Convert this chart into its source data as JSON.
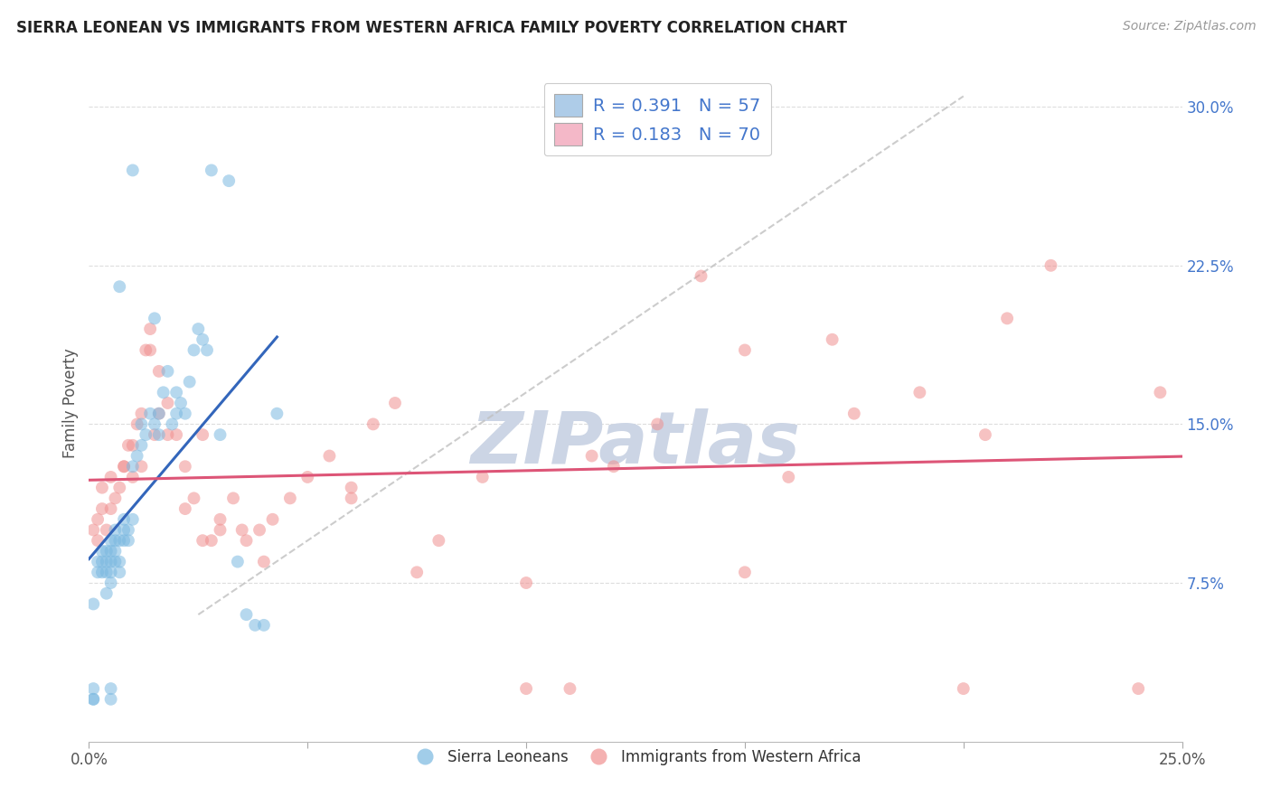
{
  "title": "SIERRA LEONEAN VS IMMIGRANTS FROM WESTERN AFRICA FAMILY POVERTY CORRELATION CHART",
  "source": "Source: ZipAtlas.com",
  "ylabel": "Family Poverty",
  "xlim": [
    0.0,
    0.25
  ],
  "ylim": [
    0.0,
    0.32
  ],
  "background_color": "#ffffff",
  "grid_color": "#dddddd",
  "dashed_line_color": "#c0c0c0",
  "blue_scatter_color": "#7ab8e0",
  "pink_scatter_color": "#f09090",
  "blue_line_color": "#3366bb",
  "pink_line_color": "#dd5577",
  "title_fontsize": 12,
  "legend_blue_label": "R = 0.391   N = 57",
  "legend_pink_label": "R = 0.183   N = 70",
  "legend_blue_patch": "#aecce8",
  "legend_pink_patch": "#f4b8c8",
  "watermark": "ZIPatlas",
  "watermark_color": "#ccd5e5",
  "axis_label_color": "#4477cc",
  "tick_color": "#555555",
  "sierra_x": [
    0.001,
    0.002,
    0.002,
    0.003,
    0.003,
    0.003,
    0.004,
    0.004,
    0.004,
    0.004,
    0.005,
    0.005,
    0.005,
    0.005,
    0.005,
    0.006,
    0.006,
    0.006,
    0.006,
    0.007,
    0.007,
    0.007,
    0.008,
    0.008,
    0.008,
    0.009,
    0.009,
    0.01,
    0.01,
    0.011,
    0.012,
    0.012,
    0.013,
    0.014,
    0.015,
    0.016,
    0.016,
    0.017,
    0.018,
    0.019,
    0.02,
    0.02,
    0.021,
    0.022,
    0.023,
    0.024,
    0.025,
    0.026,
    0.027,
    0.028,
    0.03,
    0.032,
    0.034,
    0.036,
    0.038,
    0.04,
    0.043
  ],
  "sierra_y": [
    0.065,
    0.08,
    0.085,
    0.08,
    0.085,
    0.09,
    0.07,
    0.08,
    0.085,
    0.09,
    0.075,
    0.08,
    0.085,
    0.09,
    0.095,
    0.085,
    0.09,
    0.095,
    0.1,
    0.08,
    0.085,
    0.095,
    0.095,
    0.1,
    0.105,
    0.095,
    0.1,
    0.105,
    0.13,
    0.135,
    0.14,
    0.15,
    0.145,
    0.155,
    0.15,
    0.145,
    0.155,
    0.165,
    0.175,
    0.15,
    0.155,
    0.165,
    0.16,
    0.155,
    0.17,
    0.185,
    0.195,
    0.19,
    0.185,
    0.27,
    0.145,
    0.265,
    0.085,
    0.06,
    0.055,
    0.055,
    0.155
  ],
  "sierra_outliers_x": [
    0.007,
    0.01,
    0.015,
    0.005,
    0.005,
    0.001,
    0.001,
    0.001
  ],
  "sierra_outliers_y": [
    0.215,
    0.27,
    0.2,
    0.025,
    0.02,
    0.025,
    0.02,
    0.02
  ],
  "western_x": [
    0.001,
    0.002,
    0.002,
    0.003,
    0.003,
    0.004,
    0.005,
    0.005,
    0.006,
    0.007,
    0.008,
    0.009,
    0.01,
    0.011,
    0.012,
    0.013,
    0.014,
    0.015,
    0.016,
    0.018,
    0.02,
    0.022,
    0.024,
    0.026,
    0.028,
    0.03,
    0.033,
    0.036,
    0.039,
    0.042,
    0.046,
    0.05,
    0.055,
    0.06,
    0.065,
    0.07,
    0.075,
    0.08,
    0.09,
    0.1,
    0.11,
    0.12,
    0.13,
    0.14,
    0.15,
    0.16,
    0.175,
    0.19,
    0.205,
    0.22,
    0.245
  ],
  "western_y": [
    0.1,
    0.095,
    0.105,
    0.11,
    0.12,
    0.1,
    0.11,
    0.125,
    0.115,
    0.12,
    0.13,
    0.14,
    0.125,
    0.15,
    0.13,
    0.185,
    0.185,
    0.145,
    0.175,
    0.145,
    0.145,
    0.13,
    0.115,
    0.145,
    0.095,
    0.105,
    0.115,
    0.095,
    0.1,
    0.105,
    0.115,
    0.125,
    0.135,
    0.12,
    0.15,
    0.16,
    0.08,
    0.095,
    0.125,
    0.025,
    0.025,
    0.13,
    0.15,
    0.22,
    0.185,
    0.125,
    0.155,
    0.165,
    0.145,
    0.225,
    0.165
  ],
  "western_extra_x": [
    0.008,
    0.01,
    0.012,
    0.014,
    0.016,
    0.018,
    0.022,
    0.026,
    0.03,
    0.035,
    0.04,
    0.06,
    0.1,
    0.15,
    0.2,
    0.24,
    0.115,
    0.17,
    0.21
  ],
  "western_extra_y": [
    0.13,
    0.14,
    0.155,
    0.195,
    0.155,
    0.16,
    0.11,
    0.095,
    0.1,
    0.1,
    0.085,
    0.115,
    0.075,
    0.08,
    0.025,
    0.025,
    0.135,
    0.19,
    0.2
  ]
}
